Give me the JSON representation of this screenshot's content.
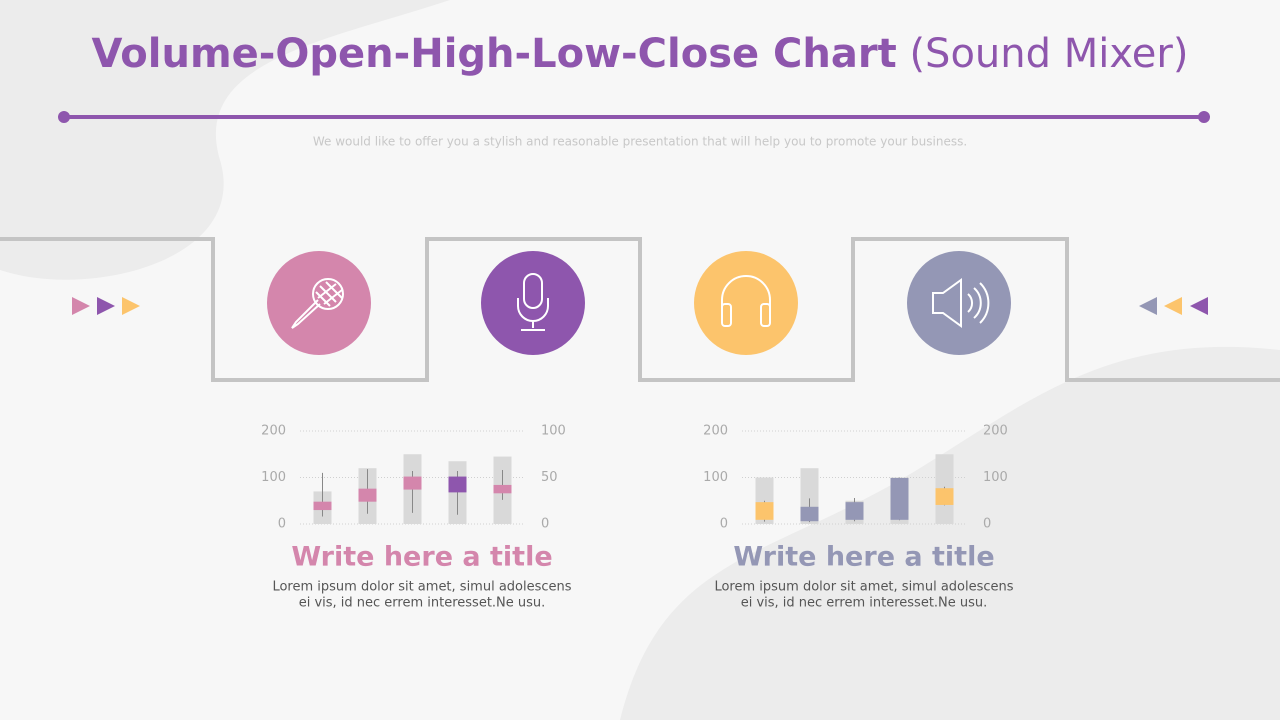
{
  "header": {
    "title": "Volume-Open-High-Low-Close Chart",
    "title_suffix": "(Sound Mixer)",
    "subtitle": "We would like to offer you a stylish and reasonable presentation that will help you to promote your business."
  },
  "chart_data": [
    {
      "type": "vohlc",
      "ylim": [
        0,
        200
      ],
      "yticks": [
        0,
        100,
        200
      ],
      "y2lim": [
        0,
        100
      ],
      "y2ticks": [
        0,
        50,
        100
      ],
      "grid": true,
      "volume": [
        70,
        120,
        150,
        135,
        145
      ],
      "open": [
        15,
        24,
        37,
        51,
        33
      ],
      "high": [
        55,
        59,
        57,
        57,
        58
      ],
      "low": [
        8,
        11,
        12,
        10,
        26
      ],
      "close": [
        24,
        38,
        51,
        34,
        42
      ],
      "volume_color": "#d9d9d9",
      "up_color": "#d486ac",
      "down_color": "#8e56ad"
    },
    {
      "type": "vohlc",
      "ylim": [
        0,
        200
      ],
      "yticks": [
        0,
        100,
        200
      ],
      "y2lim": [
        0,
        200
      ],
      "y2ticks": [
        0,
        100,
        200
      ],
      "grid": true,
      "volume": [
        100,
        120,
        50,
        100,
        150
      ],
      "open": [
        9,
        37,
        47,
        99,
        41
      ],
      "high": [
        50,
        55,
        56,
        100,
        80
      ],
      "low": [
        5,
        4,
        6,
        8,
        40
      ],
      "close": [
        47,
        6,
        9,
        9,
        77
      ],
      "volume_color": "#d9d9d9",
      "up_color": "#fcc46c",
      "down_color": "#9497b5"
    }
  ],
  "cards": [
    {
      "title": "Write here a title",
      "lines": [
        "Lorem ipsum dolor sit amet, simul adolescens",
        "ei vis, id nec errem interesset.Ne usu."
      ],
      "color": "#d486ac"
    },
    {
      "title": "Write here a title",
      "lines": [
        "Lorem ipsum dolor sit amet, simul adolescens",
        "ei vis, id nec errem interesset.Ne usu."
      ],
      "color": "#9497b5"
    }
  ]
}
